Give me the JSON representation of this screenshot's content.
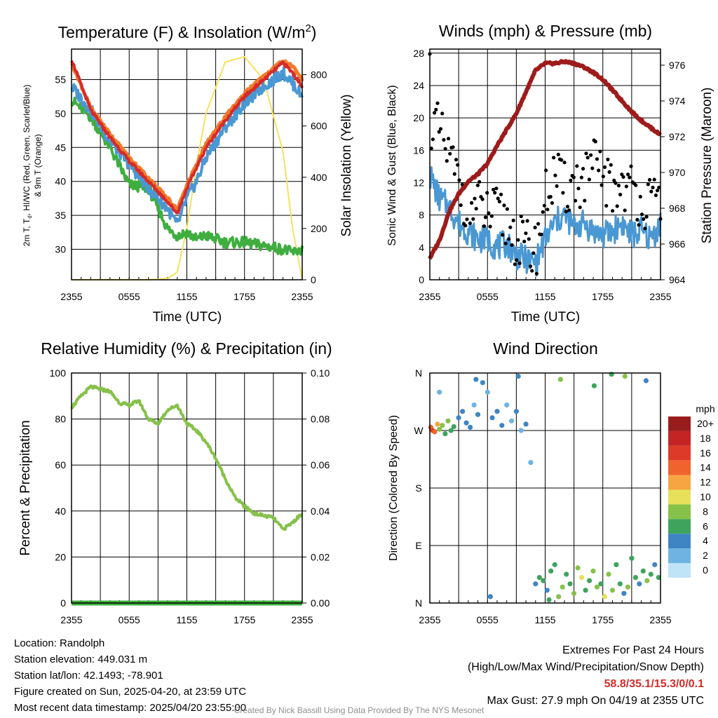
{
  "colors": {
    "temp_2m": "#d52b2b",
    "temp_9m": "#f07b2a",
    "dewpoint": "#3fae3f",
    "hiwc": "#4a98d3",
    "insolation": "#f6e15a",
    "wind": "#4a98d3",
    "gust": "#000000",
    "pressure": "#9e1b1b",
    "humidity": "#86c14a",
    "precip": "#3fae3f"
  },
  "chart_data": [
    {
      "type": "line",
      "title": "Temperature (F) & Insolation (W/m²)",
      "title_main": "Temperature (F) & Insolation (W/m",
      "title_sup": "2",
      "title_end": ")",
      "xlabel": "Time (UTC)",
      "ylabel_left": "2m T, Td, HI/WC (Red, Green, Scarlet/Blue) & 9m T (Orange)",
      "ylabel_left_line1": "2m T, T",
      "ylabel_left_sub": "d",
      "ylabel_left_line1_end": ", HI/WC (Red, Green, Scarlet/Blue)",
      "ylabel_left_line2": "& 9m T (Orange)",
      "ylabel_right": "Solar Insolation (Yellow)",
      "x_ticks": [
        "2355",
        "0555",
        "1155",
        "1755",
        "2355"
      ],
      "y_ticks_left": [
        30,
        35,
        40,
        45,
        50,
        55
      ],
      "y_ticks_right": [
        0,
        200,
        400,
        600,
        800
      ],
      "ylim_left": [
        25.5,
        59.5
      ],
      "ylim_right": [
        0,
        900
      ],
      "x_hours": [
        0,
        2,
        4,
        6,
        8,
        10,
        11,
        12,
        13,
        14,
        16,
        18,
        20,
        22,
        23,
        24
      ],
      "series": [
        {
          "name": "2m T",
          "axis": "left",
          "values": [
            58,
            50.5,
            46.5,
            43,
            40,
            37,
            35.3,
            39,
            42,
            45,
            49,
            52.5,
            55,
            57.5,
            56,
            54
          ]
        },
        {
          "name": "9m T",
          "axis": "left",
          "values": [
            57.5,
            50.8,
            47,
            43.5,
            40.5,
            37.5,
            35.8,
            39.5,
            42.5,
            45.5,
            49.5,
            53,
            55.5,
            57.8,
            57,
            55
          ]
        },
        {
          "name": "Td",
          "axis": "left",
          "values": [
            52,
            49.5,
            45,
            39.5,
            39,
            33,
            32,
            32.5,
            31.5,
            32,
            31,
            31,
            30.5,
            30,
            29.5,
            30
          ]
        },
        {
          "name": "HI/WC",
          "axis": "left",
          "values": [
            54,
            50.5,
            46,
            42.5,
            39,
            36,
            33.5,
            37.5,
            40,
            43.5,
            48,
            51.5,
            54,
            56,
            54.5,
            52.5
          ]
        },
        {
          "name": "Solar Insolation",
          "axis": "right",
          "values": [
            0,
            0,
            0,
            0,
            0,
            5,
            30,
            200,
            450,
            650,
            850,
            870,
            780,
            500,
            200,
            0
          ]
        }
      ]
    },
    {
      "type": "line",
      "title": "Winds (mph) & Pressure (mb)",
      "xlabel": "Time (UTC)",
      "ylabel_left": "Sonic Wind & Gust (Blue, Black)",
      "ylabel_right": "Station Pressure (Maroon)",
      "x_ticks": [
        "2355",
        "0555",
        "1155",
        "1755",
        "2355"
      ],
      "y_ticks_left": [
        0,
        4,
        8,
        12,
        16,
        20,
        24,
        28
      ],
      "y_ticks_right": [
        964,
        966,
        968,
        970,
        972,
        974,
        976
      ],
      "ylim_left": [
        0,
        28.5
      ],
      "ylim_right": [
        964,
        976.9
      ],
      "x_hours": [
        0,
        1,
        2,
        3,
        4,
        5,
        6,
        7,
        8,
        9,
        10,
        11,
        12,
        13,
        14,
        15,
        16,
        17,
        18,
        19,
        20,
        21,
        22,
        23,
        24
      ],
      "series": [
        {
          "name": "Sonic Wind",
          "axis": "left",
          "values": [
            13,
            10,
            9,
            7,
            6,
            5,
            5,
            4,
            4.5,
            3,
            2.5,
            2,
            5,
            7,
            8,
            6.5,
            7,
            6,
            5.5,
            6,
            7,
            5.5,
            6,
            5,
            7
          ]
        },
        {
          "name": "Gust",
          "axis": "left",
          "values": [
            20,
            18,
            15,
            12,
            9,
            9,
            8,
            8,
            7,
            5,
            4,
            3.5,
            10,
            13,
            11,
            12,
            12,
            14,
            13,
            11,
            12,
            11,
            10,
            9,
            10
          ]
        },
        {
          "name": "Station Pressure",
          "axis": "right",
          "values": [
            965.2,
            966.2,
            967.8,
            968.8,
            969.5,
            969.9,
            970.5,
            971.5,
            972.4,
            973.3,
            974.5,
            975.7,
            976.1,
            976.1,
            976.2,
            976.1,
            975.9,
            975.6,
            975.2,
            974.6,
            974.0,
            973.4,
            972.9,
            972.5,
            972.1
          ]
        }
      ],
      "gust_peak": 27.9
    },
    {
      "type": "line",
      "title": "Relative Humidity (%) & Precipitation (in)",
      "ylabel_left": "Percent & Precipitation",
      "x_ticks": [
        "2355",
        "0555",
        "1155",
        "1755",
        "2355"
      ],
      "y_ticks_left": [
        0,
        20,
        40,
        60,
        80,
        100
      ],
      "y_ticks_right": [
        "0.00",
        "0.02",
        "0.04",
        "0.06",
        "0.08",
        "0.10"
      ],
      "ylim_left": [
        0,
        100
      ],
      "ylim_right": [
        0,
        0.1
      ],
      "x_hours": [
        0,
        1,
        2,
        3,
        4,
        5,
        6,
        7,
        8,
        9,
        10,
        11,
        12,
        13,
        14,
        15,
        16,
        17,
        18,
        19,
        20,
        21,
        22,
        23,
        24
      ],
      "series": [
        {
          "name": "Relative Humidity",
          "axis": "left",
          "values": [
            85,
            90,
            94,
            93,
            92,
            87,
            86,
            88,
            80,
            78,
            84,
            86,
            78,
            75,
            70,
            63,
            54,
            46,
            42,
            39,
            38,
            37,
            32,
            35,
            39
          ]
        },
        {
          "name": "Precipitation",
          "axis": "right",
          "values": [
            0,
            0,
            0,
            0,
            0,
            0,
            0,
            0,
            0,
            0,
            0,
            0,
            0,
            0,
            0,
            0,
            0,
            0,
            0,
            0,
            0,
            0,
            0,
            0,
            0
          ]
        }
      ]
    },
    {
      "type": "scatter",
      "title": "Wind Direction",
      "ylabel_left": "Direction (Colored By Speed)",
      "x_ticks": [
        "2355",
        "0555",
        "1155",
        "1755",
        "2355"
      ],
      "y_ticks_left": [
        "N",
        "E",
        "S",
        "W",
        "N"
      ],
      "ylim_left": [
        0,
        360
      ],
      "legend_title": "mph",
      "legend_labels": [
        "20+",
        "18",
        "16",
        "14",
        "12",
        "10",
        "8",
        "6",
        "4",
        "2",
        "0"
      ],
      "legend_colors": [
        "#9a1d1d",
        "#c42424",
        "#de3a2a",
        "#f0632d",
        "#f6a542",
        "#e8e05a",
        "#86c14a",
        "#3fa35d",
        "#3f85c4",
        "#6fb3e2",
        "#bfe3f7"
      ],
      "points_hours": [
        0.1,
        0.3,
        0.5,
        0.8,
        1.0,
        1.3,
        1.6,
        1.9,
        2.2,
        2.5,
        3.0,
        3.4,
        3.8,
        4.2,
        4.6,
        5.0,
        5.5,
        6.0,
        6.5,
        7.0,
        7.5,
        8.0,
        8.5,
        9.0,
        9.5,
        10.0,
        10.5,
        11.0,
        11.4,
        11.8,
        12.2,
        12.6,
        13.0,
        13.4,
        13.8,
        14.2,
        14.6,
        15.0,
        15.4,
        15.8,
        16.2,
        16.6,
        17.0,
        17.4,
        17.8,
        18.2,
        18.6,
        19.0,
        19.4,
        19.8,
        20.2,
        20.6,
        21.0,
        21.4,
        21.8,
        22.2,
        22.6,
        23.0,
        23.4,
        23.8,
        4.8,
        9.2,
        13.6,
        17.1,
        20.3,
        22.5,
        1.0,
        6.3,
        12.4,
        18.9
      ],
      "points_dir": [
        275,
        270,
        268,
        280,
        272,
        278,
        265,
        285,
        270,
        276,
        290,
        300,
        282,
        275,
        310,
        295,
        345,
        330,
        290,
        300,
        278,
        310,
        285,
        300,
        270,
        280,
        220,
        30,
        40,
        35,
        20,
        50,
        60,
        10,
        25,
        45,
        30,
        15,
        55,
        40,
        20,
        35,
        50,
        25,
        30,
        10,
        45,
        20,
        60,
        30,
        15,
        25,
        70,
        40,
        30,
        50,
        35,
        45,
        60,
        40,
        350,
        355,
        350,
        340,
        355,
        348,
        330,
        10,
        5,
        358
      ],
      "points_speed": [
        14,
        15,
        13,
        12,
        8,
        7,
        6,
        8,
        6,
        5,
        4,
        4,
        3,
        3,
        2,
        3,
        3,
        2,
        3,
        4,
        3,
        2,
        2,
        3,
        2,
        3,
        2,
        4,
        5,
        6,
        4,
        5,
        6,
        7,
        8,
        6,
        5,
        7,
        8,
        9,
        6,
        5,
        7,
        8,
        6,
        9,
        8,
        7,
        6,
        5,
        4,
        7,
        6,
        5,
        4,
        6,
        7,
        5,
        4,
        6,
        4,
        4,
        8,
        6,
        7,
        4,
        2,
        3,
        5,
        6
      ]
    }
  ],
  "info": {
    "location": "Location: Randolph",
    "elevation": "Station elevation: 449.031 m",
    "latlon": "Station lat/lon: 42.1493; -78.901",
    "created": "Figure created on Sun, 2025-04-20, at 23:59 UTC",
    "recent": "Most recent data timestamp: 2025/04/20 23:55:00"
  },
  "extremes": {
    "title": "Extremes For Past 24 Hours",
    "subtitle": "(High/Low/Max Wind/Precipitation/Snow Depth)",
    "values": "58.8/35.1/15.3/0/0.1",
    "max_gust": "Max Gust: 27.9 mph On 04/19 at 2355 UTC"
  },
  "credit": "Created By Nick Bassill Using Data Provided By The NYS Mesonet"
}
